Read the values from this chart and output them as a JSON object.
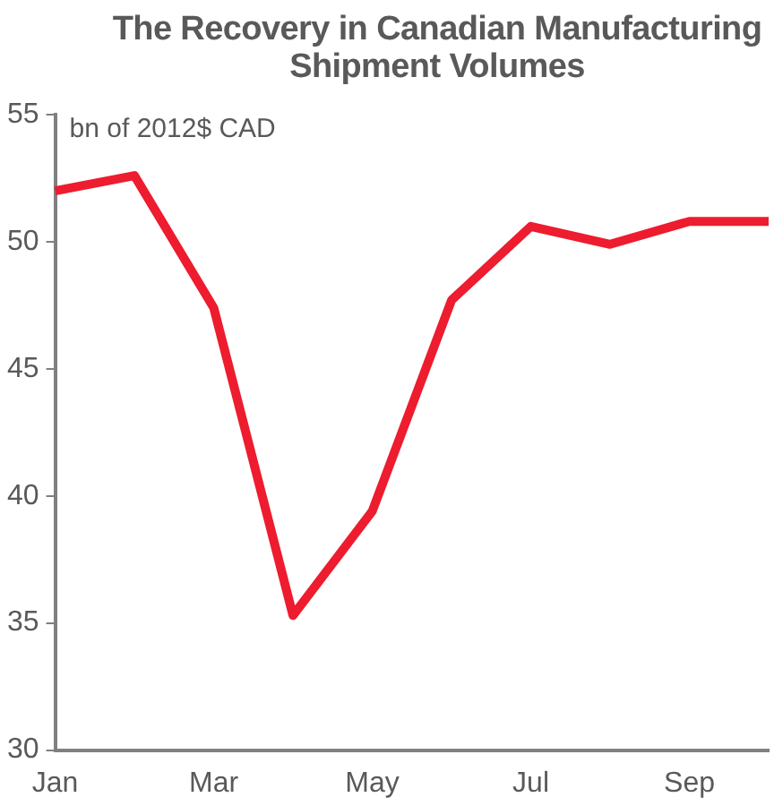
{
  "chart_data": {
    "type": "line",
    "title": "The Recovery in Canadian Manufacturing Shipment Volumes",
    "ylabel": "bn of 2012$ CAD",
    "categories": [
      "Jan",
      null,
      "Mar",
      null,
      "May",
      null,
      "Jul",
      null,
      "Sep",
      null
    ],
    "series": [
      {
        "color": "#ed1c2e",
        "values": [
          52.0,
          52.6,
          47.4,
          35.3,
          39.4,
          47.7,
          50.6,
          49.9,
          50.8,
          50.8
        ]
      }
    ],
    "ylim": [
      30,
      55
    ],
    "yticks": [
      30,
      35,
      40,
      45,
      50,
      55
    ],
    "grid": false,
    "legend": false,
    "marker": "none",
    "line_style": "solid"
  }
}
